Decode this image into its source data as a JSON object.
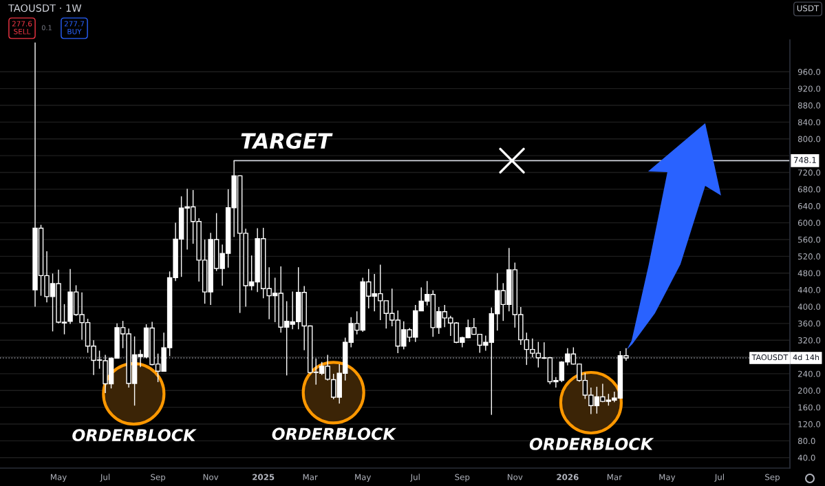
{
  "chart_data": {
    "type": "candlestick",
    "title": "TAOUSDT · 1W",
    "ylabel": "USDT",
    "color": "#ffffff",
    "x": [
      "2024-04-08",
      "2024-04-15",
      "2024-04-22",
      "2024-04-29",
      "2024-05-06",
      "2024-05-13",
      "2024-05-20",
      "2024-05-27",
      "2024-06-03",
      "2024-06-10",
      "2024-06-17",
      "2024-06-24",
      "2024-07-01",
      "2024-07-08",
      "2024-07-15",
      "2024-07-22",
      "2024-07-29",
      "2024-08-05",
      "2024-08-12",
      "2024-08-19",
      "2024-08-26",
      "2024-09-02",
      "2024-09-09",
      "2024-09-16",
      "2024-09-23",
      "2024-09-30",
      "2024-10-07",
      "2024-10-14",
      "2024-10-21",
      "2024-10-28",
      "2024-11-04",
      "2024-11-11",
      "2024-11-18",
      "2024-11-25",
      "2024-12-02",
      "2024-12-09",
      "2024-12-16",
      "2024-12-23",
      "2024-12-30",
      "2025-01-06",
      "2025-01-13",
      "2025-01-20",
      "2025-01-27",
      "2025-02-03",
      "2025-02-10",
      "2025-02-17",
      "2025-02-24",
      "2025-03-03",
      "2025-03-10",
      "2025-03-17",
      "2025-03-24",
      "2025-03-31",
      "2025-04-07",
      "2025-04-14",
      "2025-04-21",
      "2025-04-28",
      "2025-05-05",
      "2025-05-12",
      "2025-05-19",
      "2025-05-26",
      "2025-06-02",
      "2025-06-09",
      "2025-06-16",
      "2025-06-23",
      "2025-06-30",
      "2025-07-07",
      "2025-07-14",
      "2025-07-21",
      "2025-07-28",
      "2025-08-04",
      "2025-08-11",
      "2025-08-18",
      "2025-08-25",
      "2025-09-01",
      "2025-09-08",
      "2025-09-15",
      "2025-09-22",
      "2025-09-29",
      "2025-10-06",
      "2025-10-13",
      "2025-10-20",
      "2025-10-27",
      "2025-11-03",
      "2025-11-10",
      "2025-11-17",
      "2025-11-24",
      "2025-12-01",
      "2025-12-08",
      "2025-12-15",
      "2025-12-22",
      "2025-12-29",
      "2026-01-05",
      "2026-01-12",
      "2026-01-19",
      "2026-01-26",
      "2026-02-02",
      "2026-02-09",
      "2026-02-16",
      "2026-02-23",
      "2026-03-02",
      "2026-03-09",
      "2026-03-16"
    ],
    "ohlc": [
      [
        440,
        1030,
        400,
        587
      ],
      [
        587,
        595,
        426,
        474
      ],
      [
        474,
        532,
        410,
        424
      ],
      [
        424,
        479,
        341,
        455
      ],
      [
        455,
        488,
        360,
        363
      ],
      [
        363,
        406,
        334,
        361
      ],
      [
        365,
        490,
        359,
        435
      ],
      [
        435,
        451,
        378,
        381
      ],
      [
        381,
        434,
        321,
        362
      ],
      [
        362,
        371,
        290,
        306
      ],
      [
        306,
        320,
        237,
        272
      ],
      [
        272,
        295,
        252,
        273
      ],
      [
        271,
        285,
        194,
        216
      ],
      [
        216,
        279,
        205,
        277
      ],
      [
        277,
        360,
        277,
        350
      ],
      [
        350,
        366,
        301,
        335
      ],
      [
        335,
        348,
        207,
        217
      ],
      [
        217,
        329,
        164,
        285
      ],
      [
        281,
        297,
        256,
        286
      ],
      [
        280,
        358,
        277,
        349
      ],
      [
        349,
        364,
        260,
        262
      ],
      [
        263,
        288,
        220,
        246
      ],
      [
        246,
        338,
        245,
        302
      ],
      [
        302,
        484,
        282,
        469
      ],
      [
        469,
        600,
        461,
        561
      ],
      [
        561,
        663,
        471,
        635
      ],
      [
        635,
        681,
        536,
        638
      ],
      [
        638,
        678,
        550,
        603
      ],
      [
        603,
        611,
        460,
        511
      ],
      [
        511,
        560,
        407,
        435
      ],
      [
        435,
        576,
        404,
        560
      ],
      [
        560,
        623,
        485,
        491
      ],
      [
        491,
        548,
        450,
        527
      ],
      [
        527,
        680,
        493,
        636
      ],
      [
        636,
        748.1,
        566,
        712
      ],
      [
        712,
        713,
        385,
        575
      ],
      [
        575,
        586,
        400,
        450
      ],
      [
        450,
        522,
        439,
        459
      ],
      [
        459,
        587,
        435,
        562
      ],
      [
        562,
        588,
        420,
        443
      ],
      [
        443,
        494,
        370,
        426
      ],
      [
        426,
        469,
        363,
        432
      ],
      [
        432,
        496,
        338,
        351
      ],
      [
        351,
        413,
        236,
        365
      ],
      [
        358,
        436,
        346,
        364
      ],
      [
        364,
        494,
        346,
        434
      ],
      [
        434,
        449,
        296,
        354
      ],
      [
        354,
        355,
        240,
        243
      ],
      [
        243,
        276,
        214,
        244
      ],
      [
        241,
        268,
        237,
        258
      ],
      [
        258,
        285,
        224,
        227
      ],
      [
        226,
        240,
        179,
        184
      ],
      [
        184,
        263,
        169,
        241
      ],
      [
        241,
        326,
        224,
        315
      ],
      [
        315,
        375,
        303,
        360
      ],
      [
        360,
        389,
        334,
        344
      ],
      [
        344,
        469,
        340,
        459
      ],
      [
        459,
        490,
        396,
        425
      ],
      [
        425,
        478,
        389,
        431
      ],
      [
        431,
        500,
        368,
        414
      ],
      [
        414,
        414,
        348,
        384
      ],
      [
        384,
        443,
        353,
        368
      ],
      [
        368,
        391,
        289,
        306
      ],
      [
        306,
        365,
        298,
        345
      ],
      [
        345,
        349,
        316,
        327
      ],
      [
        327,
        404,
        316,
        390
      ],
      [
        390,
        446,
        390,
        413
      ],
      [
        413,
        461,
        403,
        429
      ],
      [
        429,
        439,
        328,
        350
      ],
      [
        350,
        399,
        335,
        388
      ],
      [
        388,
        404,
        351,
        373
      ],
      [
        373,
        378,
        330,
        361
      ],
      [
        361,
        363,
        313,
        315
      ],
      [
        315,
        328,
        303,
        326
      ],
      [
        326,
        369,
        325,
        350
      ],
      [
        350,
        373,
        333,
        334
      ],
      [
        334,
        335,
        290,
        308
      ],
      [
        308,
        331,
        295,
        315
      ],
      [
        315,
        398,
        142,
        383
      ],
      [
        383,
        480,
        343,
        438
      ],
      [
        438,
        456,
        366,
        405
      ],
      [
        405,
        540,
        389,
        488
      ],
      [
        488,
        505,
        350,
        381
      ],
      [
        381,
        399,
        309,
        321
      ],
      [
        321,
        338,
        261,
        298
      ],
      [
        298,
        324,
        279,
        289
      ],
      [
        289,
        316,
        255,
        278
      ],
      [
        277,
        315,
        275,
        278
      ],
      [
        278,
        280,
        215,
        221
      ],
      [
        221,
        232,
        207,
        224
      ],
      [
        224,
        270,
        220,
        268
      ],
      [
        268,
        301,
        260,
        287
      ],
      [
        287,
        303,
        262,
        263
      ],
      [
        263,
        264,
        221,
        224
      ],
      [
        224,
        242,
        180,
        189
      ],
      [
        189,
        207,
        144,
        164
      ],
      [
        164,
        209,
        145,
        185
      ],
      [
        185,
        216,
        172,
        174
      ],
      [
        174,
        192,
        164,
        177
      ],
      [
        177,
        197,
        172,
        182
      ],
      [
        182,
        294,
        180,
        283
      ],
      [
        283,
        301,
        271,
        277.6
      ]
    ],
    "series": [
      {
        "type": "line",
        "x": [
          "2024-12-02",
          "2026-09-28"
        ],
        "values": [
          748.1,
          748.1
        ],
        "color": "#d1d4dc",
        "value_labels": [
          null,
          "748.1"
        ]
      }
    ],
    "ref_lines": [
      {
        "axis": "y",
        "value": 277.6,
        "label": "TAOUSDT",
        "color": "#9598a1",
        "line_style": "dotted"
      }
    ],
    "annotations": [
      "277.6\nSELL",
      "0.1",
      "277.7\nBUY",
      "4d 14h",
      "ORDERBLOCK",
      "ORDERBLOCK",
      "ORDERBLOCK",
      {
        "text": "TARGET",
        "x": "2024-12-02",
        "y": 748.1
      }
    ],
    "xlim": [
      "2024-02-26",
      "2026-09-28"
    ],
    "xticks": [
      {
        "value": "2024-05-06",
        "label": "May"
      },
      {
        "value": "2024-07-01",
        "label": "Jul"
      },
      {
        "value": "2024-09-02",
        "label": "Sep"
      },
      {
        "value": "2024-11-04",
        "label": "Nov"
      },
      {
        "value": "2025-01-06",
        "label": "2025"
      },
      {
        "value": "2025-03-03",
        "label": "Mar"
      },
      {
        "value": "2025-05-05",
        "label": "May"
      },
      {
        "value": "2025-07-07",
        "label": "Jul"
      },
      {
        "value": "2025-09-01",
        "label": "Sep"
      },
      {
        "value": "2025-11-03",
        "label": "Nov"
      },
      {
        "value": "2026-01-05",
        "label": "2026"
      },
      {
        "value": "2026-03-02",
        "label": "Mar"
      },
      {
        "value": "2026-05-04",
        "label": "May"
      },
      {
        "value": "2026-07-06",
        "label": "Jul"
      },
      {
        "value": "2026-09-07",
        "label": "Sep"
      }
    ],
    "ylim": [
      15,
      1036
    ],
    "yticks": [
      {
        "value": 40,
        "label": "40.0"
      },
      {
        "value": 80,
        "label": "80.0"
      },
      {
        "value": 120,
        "label": "120.0"
      },
      {
        "value": 160,
        "label": "160.0"
      },
      {
        "value": 200,
        "label": "200.0"
      },
      {
        "value": 240,
        "label": "240.0"
      },
      {
        "value": 280,
        "label": null
      },
      {
        "value": 320,
        "label": "320.0"
      },
      {
        "value": 360,
        "label": "360.0"
      },
      {
        "value": 400,
        "label": "400.0"
      },
      {
        "value": 440,
        "label": "440.0"
      },
      {
        "value": 480,
        "label": "480.0"
      },
      {
        "value": 520,
        "label": "520.0"
      },
      {
        "value": 560,
        "label": "560.0"
      },
      {
        "value": 600,
        "label": "600.0"
      },
      {
        "value": 640,
        "label": "640.0"
      },
      {
        "value": 680,
        "label": "680.0"
      },
      {
        "value": 720,
        "label": "720.0"
      },
      {
        "value": 760,
        "label": null
      },
      {
        "value": 800,
        "label": "800.0"
      },
      {
        "value": 840,
        "label": "840.0"
      },
      {
        "value": 880,
        "label": "880.0"
      },
      {
        "value": 920,
        "label": "920.0"
      },
      {
        "value": 960,
        "label": "960.0"
      }
    ],
    "grid": "y"
  }
}
